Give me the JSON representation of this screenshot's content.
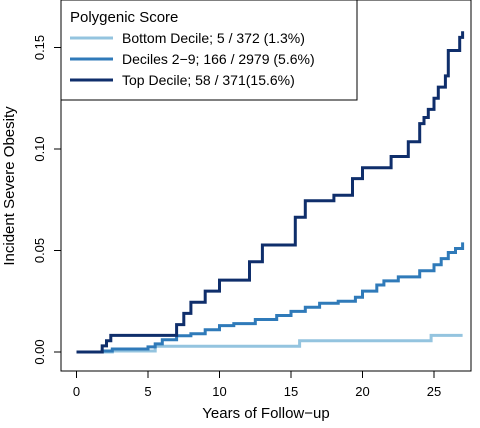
{
  "chart_data": {
    "type": "line",
    "xlabel": "Years of Follow−up",
    "ylabel": "Incident Severe Obesity",
    "xlim": [
      0,
      27.5
    ],
    "ylim": [
      0,
      0.16
    ],
    "x_ticks": [
      0,
      5,
      10,
      15,
      20,
      25
    ],
    "x_tick_labels": [
      "0",
      "5",
      "10",
      "15",
      "20",
      "25"
    ],
    "y_ticks": [
      0,
      0.05,
      0.1,
      0.15
    ],
    "y_tick_labels": [
      "0.00",
      "0.05",
      "0.10",
      "0.15"
    ],
    "grid": false,
    "legend": {
      "title": "Polygenic Score",
      "position": "top-left",
      "entries": [
        "Bottom Decile; 5 / 372 (1.3%)",
        "Deciles 2−9; 166 / 2979 (5.6%)",
        "Top Decile; 58 / 371(15.6%)"
      ]
    },
    "series": [
      {
        "name": "Bottom Decile; 5 / 372 (1.3%)",
        "color": "#94c4df",
        "step": true,
        "points": [
          [
            0,
            0
          ],
          [
            2.5,
            0
          ],
          [
            2.5,
            0.0005
          ],
          [
            5.5,
            0.0005
          ],
          [
            5.5,
            0.0028
          ],
          [
            15.6,
            0.0028
          ],
          [
            15.6,
            0.0055
          ],
          [
            24.8,
            0.0055
          ],
          [
            24.8,
            0.0082
          ],
          [
            27,
            0.0082
          ]
        ]
      },
      {
        "name": "Deciles 2−9; 166 / 2979 (5.6%)",
        "color": "#2f7ab9",
        "step": true,
        "points": [
          [
            0,
            0
          ],
          [
            1.8,
            0
          ],
          [
            1.8,
            0.0005
          ],
          [
            2.5,
            0.0005
          ],
          [
            2.5,
            0.0015
          ],
          [
            5,
            0.0015
          ],
          [
            5,
            0.0025
          ],
          [
            5.5,
            0.0025
          ],
          [
            5.5,
            0.004
          ],
          [
            6,
            0.004
          ],
          [
            6,
            0.006
          ],
          [
            7,
            0.006
          ],
          [
            7,
            0.008
          ],
          [
            8,
            0.008
          ],
          [
            8,
            0.009
          ],
          [
            9,
            0.009
          ],
          [
            9,
            0.011
          ],
          [
            10,
            0.011
          ],
          [
            10,
            0.013
          ],
          [
            11,
            0.013
          ],
          [
            11,
            0.014
          ],
          [
            12.5,
            0.014
          ],
          [
            12.5,
            0.016
          ],
          [
            14,
            0.016
          ],
          [
            14,
            0.018
          ],
          [
            15,
            0.018
          ],
          [
            15,
            0.02
          ],
          [
            16,
            0.02
          ],
          [
            16,
            0.022
          ],
          [
            17,
            0.022
          ],
          [
            17,
            0.024
          ],
          [
            18.3,
            0.024
          ],
          [
            18.3,
            0.025
          ],
          [
            19.5,
            0.025
          ],
          [
            19.5,
            0.027
          ],
          [
            20,
            0.027
          ],
          [
            20,
            0.03
          ],
          [
            21,
            0.03
          ],
          [
            21,
            0.033
          ],
          [
            21.5,
            0.033
          ],
          [
            21.5,
            0.035
          ],
          [
            22.5,
            0.035
          ],
          [
            22.5,
            0.037
          ],
          [
            24,
            0.037
          ],
          [
            24,
            0.04
          ],
          [
            25,
            0.04
          ],
          [
            25,
            0.043
          ],
          [
            25.5,
            0.043
          ],
          [
            25.5,
            0.046
          ],
          [
            26,
            0.046
          ],
          [
            26,
            0.049
          ],
          [
            26.5,
            0.049
          ],
          [
            26.5,
            0.051
          ],
          [
            27,
            0.051
          ],
          [
            27,
            0.054
          ]
        ]
      },
      {
        "name": "Top Decile; 58 / 371(15.6%)",
        "color": "#0f2e6b",
        "step": true,
        "points": [
          [
            0,
            0
          ],
          [
            1.8,
            0
          ],
          [
            1.8,
            0.003
          ],
          [
            2.1,
            0.003
          ],
          [
            2.1,
            0.0055
          ],
          [
            2.4,
            0.0055
          ],
          [
            2.4,
            0.0082
          ],
          [
            7,
            0.0082
          ],
          [
            7,
            0.0135
          ],
          [
            7.5,
            0.0135
          ],
          [
            7.5,
            0.019
          ],
          [
            8,
            0.019
          ],
          [
            8,
            0.0245
          ],
          [
            9,
            0.0245
          ],
          [
            9,
            0.03
          ],
          [
            10,
            0.03
          ],
          [
            10,
            0.0354
          ],
          [
            12.1,
            0.0354
          ],
          [
            12.1,
            0.0445
          ],
          [
            13,
            0.0445
          ],
          [
            13,
            0.0527
          ],
          [
            15.3,
            0.0527
          ],
          [
            15.3,
            0.0664
          ],
          [
            16,
            0.0664
          ],
          [
            16,
            0.0745
          ],
          [
            18,
            0.0745
          ],
          [
            18,
            0.0772
          ],
          [
            19.3,
            0.0772
          ],
          [
            19.3,
            0.0854
          ],
          [
            20,
            0.0854
          ],
          [
            20,
            0.0908
          ],
          [
            22,
            0.0908
          ],
          [
            22,
            0.0963
          ],
          [
            23.2,
            0.0963
          ],
          [
            23.2,
            0.1036
          ],
          [
            24,
            0.1036
          ],
          [
            24,
            0.1125
          ],
          [
            24.3,
            0.1125
          ],
          [
            24.3,
            0.1155
          ],
          [
            24.6,
            0.1155
          ],
          [
            24.6,
            0.1195
          ],
          [
            25,
            0.1195
          ],
          [
            25,
            0.125
          ],
          [
            25.3,
            0.125
          ],
          [
            25.3,
            0.1305
          ],
          [
            25.8,
            0.1305
          ],
          [
            25.8,
            0.136
          ],
          [
            26,
            0.136
          ],
          [
            26,
            0.1485
          ],
          [
            26.8,
            0.1485
          ],
          [
            26.8,
            0.155
          ],
          [
            27,
            0.155
          ],
          [
            27,
            0.158
          ]
        ]
      }
    ]
  }
}
